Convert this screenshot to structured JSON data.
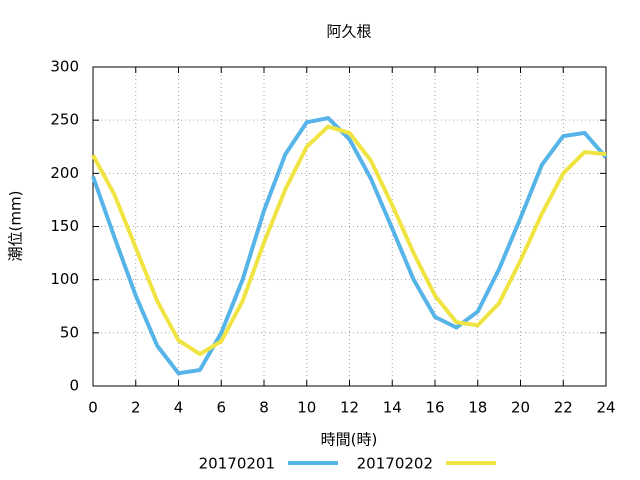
{
  "chart_data": {
    "type": "line",
    "title": "阿久根",
    "x_label": "時間(時)",
    "y_label": "潮位(mm)",
    "x": [
      0,
      1,
      2,
      3,
      4,
      5,
      6,
      7,
      8,
      9,
      10,
      11,
      12,
      13,
      14,
      15,
      16,
      17,
      18,
      19,
      20,
      21,
      22,
      23,
      24
    ],
    "series": [
      {
        "name": "20170201",
        "color": "#56b4e9",
        "values": [
          197,
          140,
          85,
          38,
          12,
          15,
          50,
          100,
          165,
          218,
          248,
          252,
          232,
          195,
          148,
          100,
          65,
          55,
          70,
          110,
          158,
          208,
          235,
          238,
          215
        ]
      },
      {
        "name": "20170202",
        "color": "#f0e442",
        "values": [
          217,
          180,
          130,
          80,
          43,
          30,
          42,
          80,
          135,
          185,
          225,
          244,
          238,
          212,
          170,
          125,
          85,
          60,
          57,
          78,
          118,
          162,
          200,
          220,
          218
        ]
      }
    ],
    "xlim": [
      0,
      24
    ],
    "xticks": [
      0,
      2,
      4,
      6,
      8,
      10,
      12,
      14,
      16,
      18,
      20,
      22,
      24
    ],
    "ylim": [
      0,
      300
    ],
    "yticks": [
      0,
      50,
      100,
      150,
      200,
      250,
      300
    ],
    "grid": true,
    "legend": "bottom"
  }
}
